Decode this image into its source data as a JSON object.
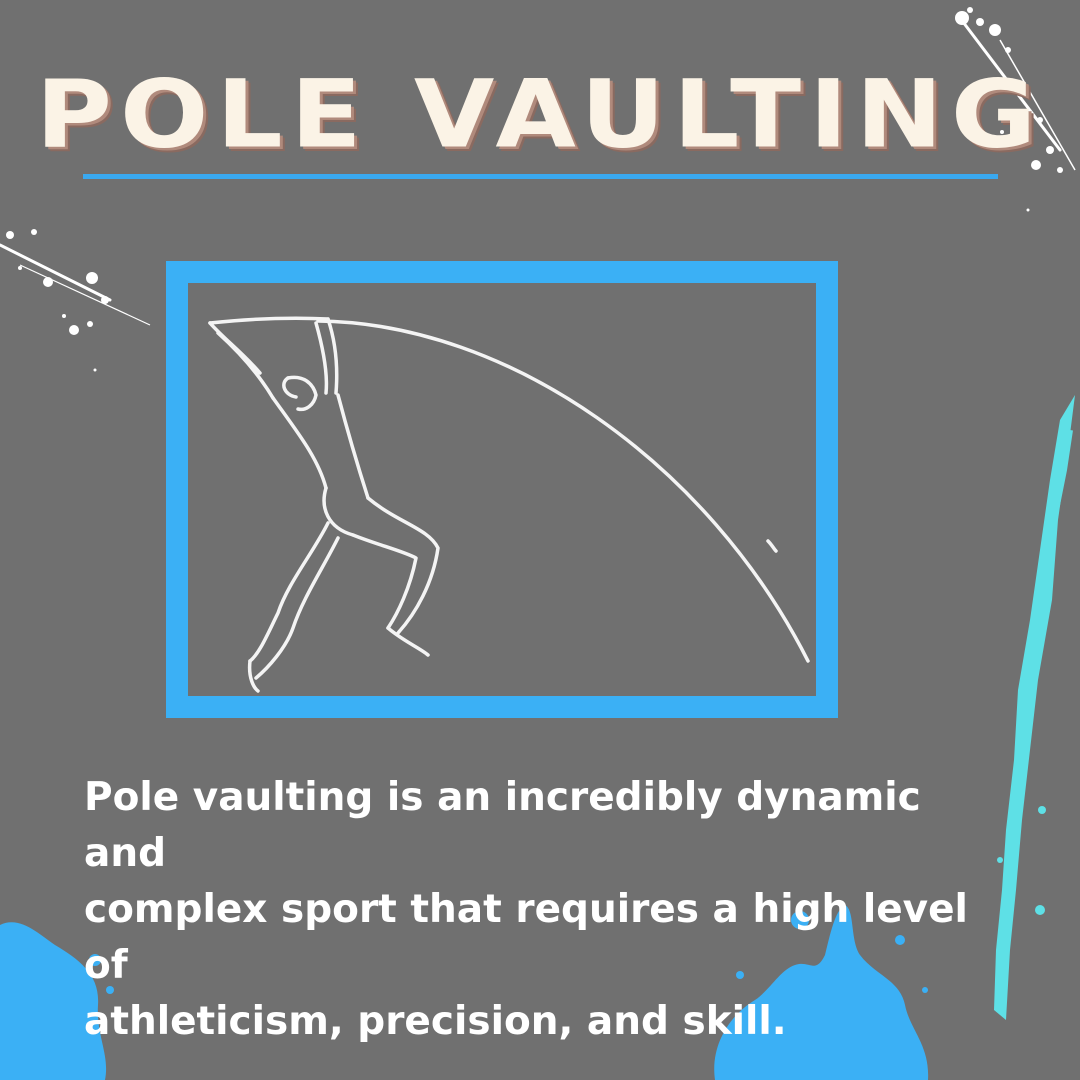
{
  "title": "POLE VAULTING",
  "description": " Pole vaulting is an incredibly dynamic and\ncomplex sport that requires a high level of\nathleticism, precision, and skill.",
  "colors": {
    "background": "#707070",
    "accent_blue": "#3bb0f5",
    "accent_cyan": "#5ee0e6",
    "title_fill": "#fbf3e6",
    "title_shadow": "#b08a7c"
  },
  "illustration": {
    "icon": "pole-vaulter-line-drawing"
  }
}
